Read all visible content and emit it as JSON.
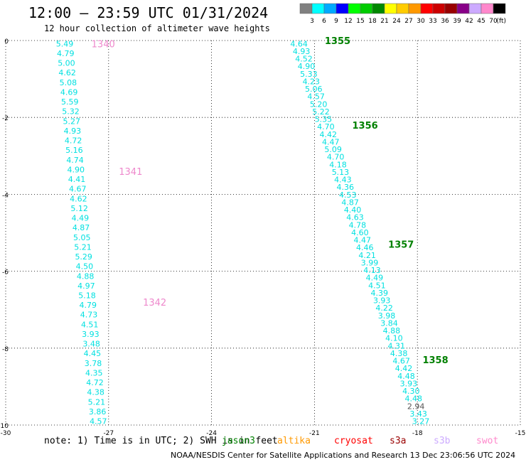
{
  "title": "12:00 — 23:59 UTC 01/31/2024",
  "subtitle": "12 hour collection of altimeter wave heights",
  "note": "note:  1) Time is in UTC; 2) SWH is in feet",
  "credit": "NOAA/NESDIS Center for Satellite Applications and Research    13 Dec 23:06:56 UTC 2024",
  "satellites": [
    {
      "name": "jason3",
      "color": "#008000"
    },
    {
      "name": "altika",
      "color": "#ff9900"
    },
    {
      "name": "cryosat",
      "color": "#ff0000"
    },
    {
      "name": "s3a",
      "color": "#990000"
    },
    {
      "name": "s3b",
      "color": "#ccaaff"
    },
    {
      "name": "swot",
      "color": "#ff88cc"
    }
  ],
  "colorbar": {
    "unit": "(ft)",
    "colors": [
      "#808080",
      "#00ffff",
      "#00aaff",
      "#0000ff",
      "#00ff00",
      "#00cc00",
      "#008800",
      "#ffff00",
      "#ffcc00",
      "#ff9900",
      "#ff0000",
      "#cc0000",
      "#990000",
      "#880088",
      "#ccaaff",
      "#ff88cc",
      "#000000"
    ],
    "labels": [
      "3",
      "6",
      "9",
      "12",
      "15",
      "18",
      "21",
      "24",
      "27",
      "30",
      "33",
      "36",
      "39",
      "42",
      "45",
      "70"
    ]
  },
  "chart_data": {
    "type": "scatter",
    "xlim": [
      -30,
      -15
    ],
    "ylim": [
      -10,
      0
    ],
    "x_ticks": [
      -30,
      -27,
      -24,
      -21,
      -18,
      -15
    ],
    "y_ticks": [
      0,
      -2,
      -4,
      -6,
      -8,
      -10
    ],
    "grid": true,
    "tracks": [
      {
        "satellite": "swot",
        "color": "#00e0e0",
        "x_start": -28.28,
        "x_end": -27.3,
        "y_start": -0.08,
        "y_end": -9.9,
        "values": [
          5.49,
          4.79,
          5.0,
          4.62,
          5.08,
          4.69,
          5.59,
          5.32,
          5.27,
          4.93,
          4.72,
          5.16,
          4.74,
          4.9,
          4.41,
          4.67,
          4.62,
          5.12,
          4.49,
          4.87,
          5.05,
          5.21,
          5.29,
          4.5,
          4.88,
          4.97,
          5.18,
          4.79,
          4.73,
          4.51,
          3.93,
          3.48,
          4.45,
          3.78,
          4.35,
          4.72,
          4.38,
          5.21,
          3.86,
          4.57
        ],
        "labels": [
          {
            "text": "1340",
            "x": -27.5,
            "y": -0.08,
            "color": "#ee88cc"
          },
          {
            "text": "1341",
            "x": -26.7,
            "y": -3.4,
            "color": "#ee88cc"
          },
          {
            "text": "1342",
            "x": -26.0,
            "y": -6.8,
            "color": "#ee88cc"
          }
        ]
      },
      {
        "satellite": "jason3",
        "color": "#00e0e0",
        "x_start": -21.45,
        "x_end": -17.9,
        "y_start": -0.08,
        "y_end": -9.9,
        "values": [
          4.64,
          4.93,
          4.52,
          4.9,
          5.33,
          4.23,
          5.06,
          4.57,
          5.2,
          5.22,
          5.35,
          4.7,
          4.42,
          4.47,
          5.09,
          4.7,
          4.18,
          5.13,
          4.43,
          4.36,
          4.53,
          4.87,
          4.4,
          4.63,
          4.78,
          4.6,
          4.47,
          4.46,
          4.21,
          3.99,
          4.13,
          4.49,
          4.51,
          4.39,
          3.93,
          4.22,
          3.98,
          3.84,
          4.88,
          4.1,
          4.31,
          4.38,
          4.67,
          4.42,
          4.48,
          3.93,
          4.3,
          4.48,
          2.94,
          3.43,
          3.27
        ],
        "highlight": {
          "index": 48,
          "color": "#555555"
        },
        "labels": [
          {
            "text": "1355",
            "x": -20.7,
            "y": -0.0,
            "color": "#008000"
          },
          {
            "text": "1356",
            "x": -19.9,
            "y": -2.2,
            "color": "#008000"
          },
          {
            "text": "1357",
            "x": -18.85,
            "y": -5.3,
            "color": "#008000"
          },
          {
            "text": "1358",
            "x": -17.85,
            "y": -8.3,
            "color": "#008000"
          }
        ]
      }
    ]
  }
}
